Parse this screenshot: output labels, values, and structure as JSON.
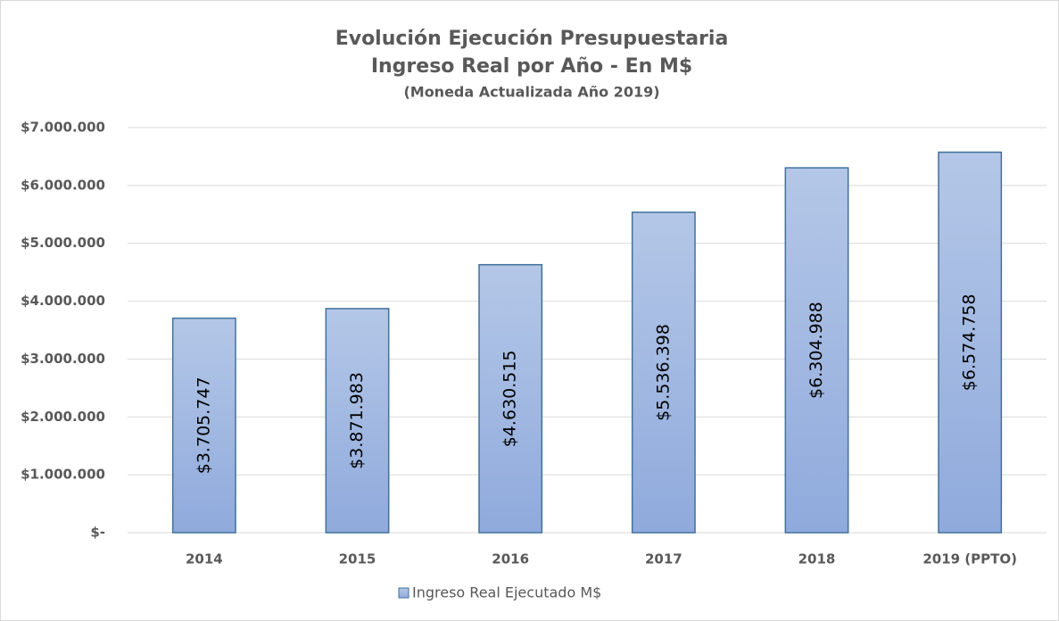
{
  "chart_data": {
    "type": "bar",
    "title": "Evolución Ejecución Presupuestaria",
    "subtitle": "Ingreso Real por Año - En M$",
    "note": "(Moneda Actualizada Año 2019)",
    "categories": [
      "2014",
      "2015",
      "2016",
      "2017",
      "2018",
      "2019 (PPTO)"
    ],
    "series": [
      {
        "name": "Ingreso Real Ejecutado M$",
        "color": "#8faadc",
        "values": [
          3705747,
          3871983,
          4630515,
          5536398,
          6304988,
          6574758
        ],
        "value_labels": [
          "$3.705.747",
          "$3.871.983",
          "$4.630.515",
          "$5.536.398",
          "$6.304.988",
          "$6.574.758"
        ]
      }
    ],
    "ylim": [
      0,
      7000000
    ],
    "yticks": [
      {
        "value": 0,
        "label": "$-"
      },
      {
        "value": 1000000,
        "label": "$1.000.000"
      },
      {
        "value": 2000000,
        "label": "$2.000.000"
      },
      {
        "value": 3000000,
        "label": "$3.000.000"
      },
      {
        "value": 4000000,
        "label": "$4.000.000"
      },
      {
        "value": 5000000,
        "label": "$5.000.000"
      },
      {
        "value": 6000000,
        "label": "$6.000.000"
      },
      {
        "value": 7000000,
        "label": "$7.000.000"
      }
    ],
    "grid": true,
    "legend": "bottom"
  }
}
